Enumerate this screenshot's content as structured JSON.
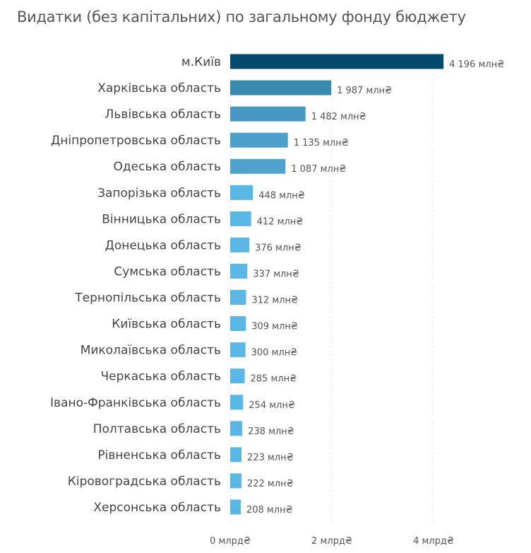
{
  "chart_data": {
    "type": "bar",
    "orientation": "horizontal",
    "title": "Видатки (без капітальних) по загальному фонду бюджету",
    "categories": [
      "м.Київ",
      "Харківська область",
      "Львівська область",
      "Дніпропетровська область",
      "Одеська область",
      "Запорізька область",
      "Вінницька область",
      "Донецька область",
      "Сумська область",
      "Тернопільська область",
      "Київська область",
      "Миколаївська область",
      "Черкаська область",
      "Івано-Франківська область",
      "Полтавська область",
      "Рівненська область",
      "Кіровоградська область",
      "Херсонська область"
    ],
    "values": [
      4196,
      1987,
      1482,
      1135,
      1087,
      448,
      412,
      376,
      337,
      312,
      309,
      300,
      285,
      254,
      238,
      223,
      222,
      208
    ],
    "value_labels": [
      "4 196 млн₴",
      "1 987 млн₴",
      "1 482 млн₴",
      "1 135 млн₴",
      "1 087 млн₴",
      "448 млн₴",
      "412 млн₴",
      "376 млн₴",
      "337 млн₴",
      "312 млн₴",
      "309 млн₴",
      "300 млн₴",
      "285 млн₴",
      "254 млн₴",
      "238 млн₴",
      "223 млн₴",
      "222 млн₴",
      "208 млн₴"
    ],
    "unit": "млн₴",
    "xlim": [
      0,
      4400
    ],
    "x_ticks": [
      0,
      2000,
      4000
    ],
    "x_tick_labels": [
      "0 млрд₴",
      "2 млрд₴",
      "4 млрд₴"
    ],
    "grid": "vertical dotted",
    "colors": [
      "#044a6c",
      "#3a8ab0",
      "#4797c1",
      "#4c9fca",
      "#4ea2cd",
      "#5ab6e2"
    ]
  }
}
